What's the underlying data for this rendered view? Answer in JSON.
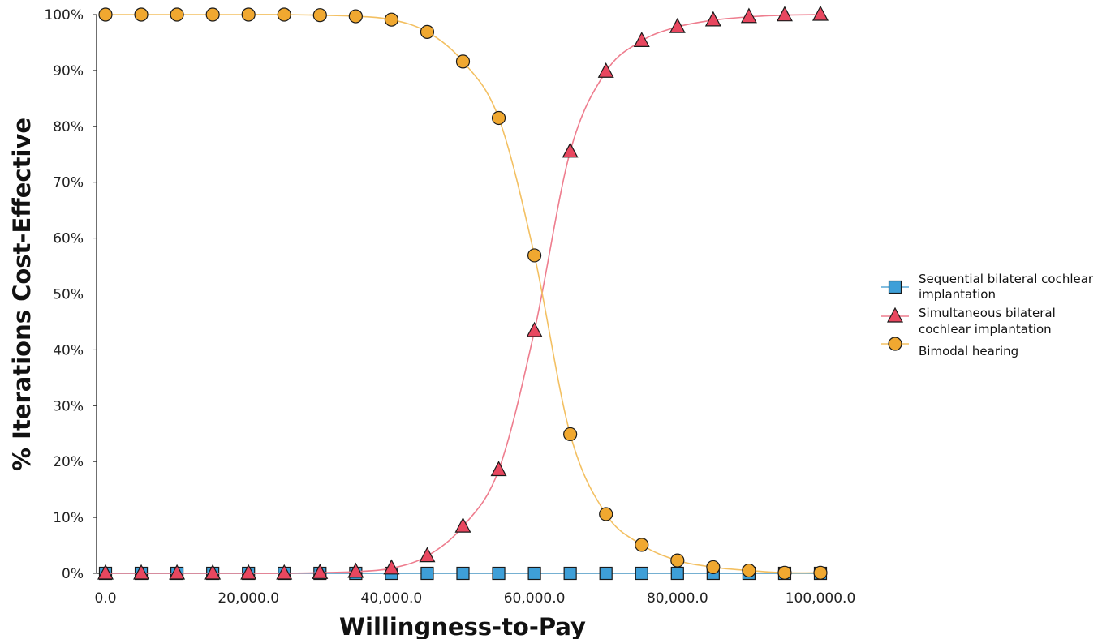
{
  "chart_data": {
    "type": "line",
    "title": "",
    "xlabel": "Willingness-to-Pay",
    "ylabel": "% Iterations Cost-Effective",
    "xlim": [
      0,
      100000
    ],
    "ylim": [
      0,
      100
    ],
    "x_ticks": [
      0,
      20000,
      40000,
      60000,
      80000,
      100000
    ],
    "x_tick_labels": [
      "0.0",
      "20,000.0",
      "40,000.0",
      "60,000.0",
      "80,000.0",
      "100,000.0"
    ],
    "y_ticks": [
      0,
      10,
      20,
      30,
      40,
      50,
      60,
      70,
      80,
      90,
      100
    ],
    "y_tick_labels": [
      "0%",
      "10%",
      "20%",
      "30%",
      "40%",
      "50%",
      "60%",
      "70%",
      "80%",
      "90%",
      "100%"
    ],
    "grid": false,
    "legend_position": "right",
    "x": [
      0,
      5000,
      10000,
      15000,
      20000,
      25000,
      30000,
      35000,
      40000,
      45000,
      50000,
      55000,
      60000,
      65000,
      70000,
      75000,
      80000,
      85000,
      90000,
      95000,
      100000
    ],
    "series": [
      {
        "name_lines": [
          "Sequential bilateral cochlear",
          "implantation"
        ],
        "marker": "square",
        "fill": "#3e9fd8",
        "line_color": "#5aa9d6",
        "values": [
          0,
          0,
          0,
          0,
          0,
          0,
          0,
          0,
          0,
          0,
          0,
          0,
          0,
          0,
          0,
          0,
          0,
          0,
          0,
          0,
          0
        ]
      },
      {
        "name_lines": [
          "Simultaneous bilateral",
          "cochlear implantation"
        ],
        "marker": "triangle",
        "fill": "#e8475f",
        "line_color": "#ee7d8e",
        "values": [
          0,
          0,
          0,
          0,
          0,
          0,
          0.1,
          0.3,
          0.9,
          3.1,
          8.4,
          18.5,
          43.4,
          75.5,
          89.8,
          95.3,
          97.8,
          99.0,
          99.6,
          99.9,
          100
        ]
      },
      {
        "name_lines": [
          "Bimodal hearing"
        ],
        "marker": "circle",
        "fill": "#f0a830",
        "line_color": "#f3c062",
        "values": [
          100,
          100,
          100,
          100,
          100,
          100,
          99.9,
          99.7,
          99.1,
          96.9,
          91.6,
          81.5,
          56.9,
          24.9,
          10.6,
          5.1,
          2.3,
          1.1,
          0.5,
          0.1,
          0.1
        ]
      }
    ]
  }
}
